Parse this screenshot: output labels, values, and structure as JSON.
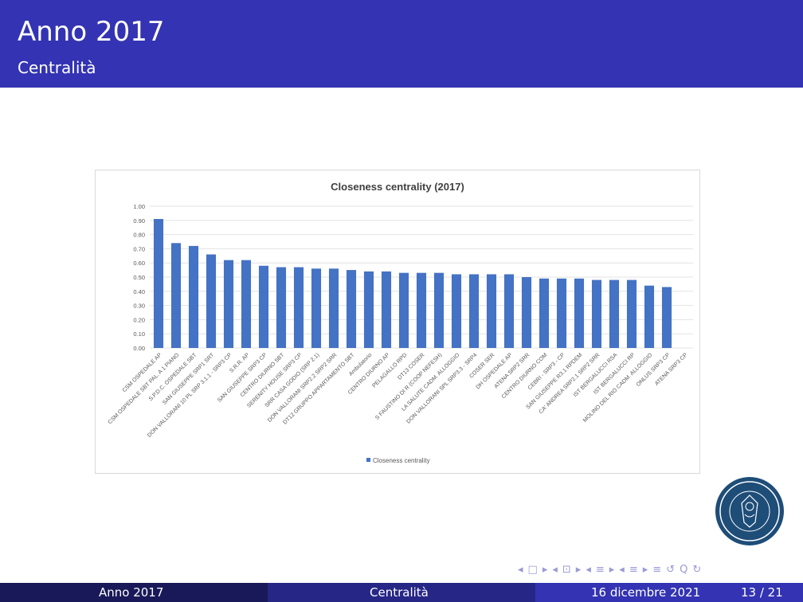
{
  "header": {
    "title": "Anno 2017",
    "subtitle": "Centralità"
  },
  "footer": {
    "left": "Anno 2017",
    "center": "Centralità",
    "date": "16 dicembre 2021",
    "page": "13 / 21"
  },
  "nav_symbols": [
    "◂",
    "□",
    "▸",
    "◂",
    "⊡",
    "▸",
    "◂",
    "≡",
    "▸",
    "◂",
    "≡",
    "▸",
    "≡",
    "↺",
    "Q",
    "↻"
  ],
  "colors": {
    "header_bg": "#3333b3",
    "bar": "#4472c4",
    "footer_dark": "#191959",
    "footer_mid": "#262686"
  },
  "chart_data": {
    "type": "bar",
    "title": "Closeness centrality (2017)",
    "xlabel": "",
    "ylabel": "",
    "ylim": [
      0,
      1
    ],
    "yticks": [
      "0.00",
      "0.10",
      "0.20",
      "0.30",
      "0.40",
      "0.50",
      "0.60",
      "0.70",
      "0.80",
      "0.90",
      "1.00"
    ],
    "grid": true,
    "legend_position": "bottom",
    "categories": [
      "CSM OSPEDALE AP",
      "CSM OSPEDALE SBT PAL. A 1 PIANO",
      "S.P.D.C. OSPEDALE SBT",
      "SAN GIUSEPPE SRP1 SRT",
      "DON VALLORANI 10 PL SRP 3.1.1 - SRP3 CP",
      "S.R.R. AP",
      "SAN GIUSEPPE SRP3 CP",
      "CENTRO DIURNO SBT",
      "SERENITY HOUSE SRP3 CP",
      "SRR CASA GODIO (SRP 2.1)",
      "DON VALLORANI SRP2.2 SRP2 SRR",
      "DT12 GRUPPO APPARTAMENTO SBT",
      "Ambulatorio",
      "CENTRO DIURNO AP",
      "PELAGALLO RPD",
      "DT13 COSER",
      "S FAUSTINO DI R (COOP NEFESH)",
      "LA SALUTE CADM. ALLOGGIO",
      "DON VALLORANI SPL SRP3.3 - SRP4",
      "COSER SER",
      "DH OSPEDALE AP",
      "ATENA SRP2 SRR",
      "CENTRO DIURNO COM",
      "CEBRI - SRP3 - CP",
      "SAN GIUSEPPE R3.1 RPDEM",
      "CA' ANDREA SRP2.1 SRP2 SRR",
      "IST BERGALUCCI RSA",
      "IST BERGALUCCI RP",
      "MOLINO DEL RIO CADM. ALLOGGIO",
      "ONLUS SRP3 CP",
      "ATENA SRP3 CP"
    ],
    "series": [
      {
        "name": "Closeness centrality",
        "values": [
          0.91,
          0.74,
          0.72,
          0.66,
          0.62,
          0.62,
          0.58,
          0.57,
          0.57,
          0.56,
          0.56,
          0.55,
          0.54,
          0.54,
          0.53,
          0.53,
          0.53,
          0.52,
          0.52,
          0.52,
          0.52,
          0.5,
          0.49,
          0.49,
          0.49,
          0.48,
          0.48,
          0.48,
          0.44,
          0.43,
          0.0
        ]
      }
    ]
  }
}
